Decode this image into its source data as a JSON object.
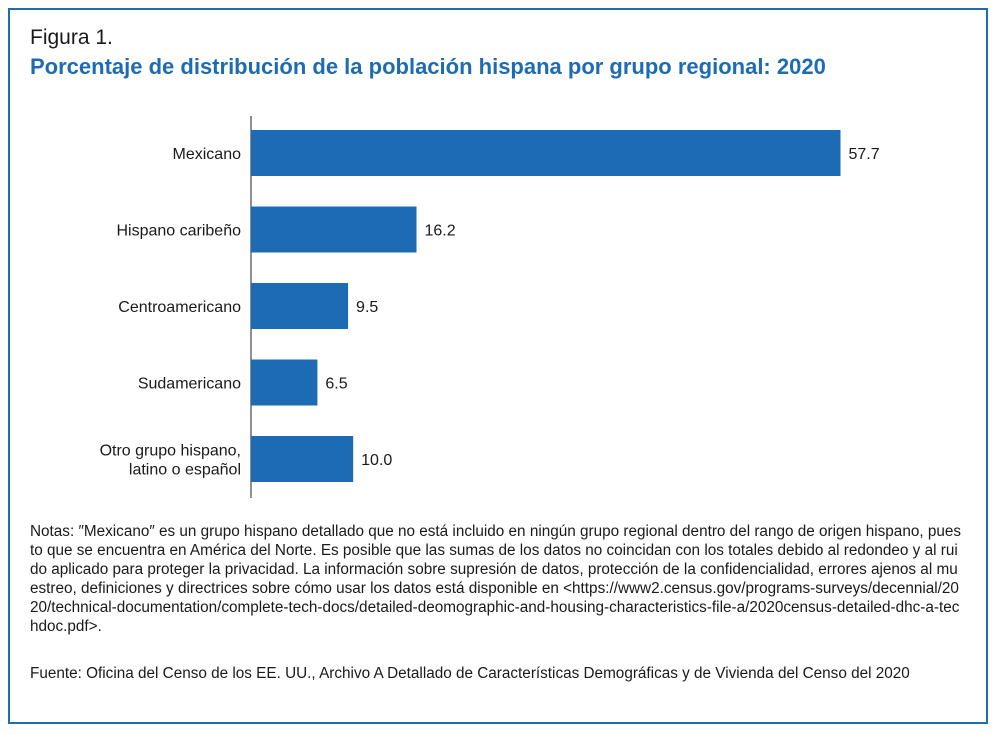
{
  "figure_label": "Figura 1.",
  "title": "Porcentaje de distribución de la población hispana por grupo regional: 2020",
  "chart_data": {
    "type": "bar",
    "orientation": "horizontal",
    "categories": [
      [
        "Mexicano"
      ],
      [
        "Hispano caribeño"
      ],
      [
        "Centroamericano"
      ],
      [
        "Sudamericano"
      ],
      [
        "Otro grupo hispano,",
        "latino o español"
      ]
    ],
    "values": [
      57.7,
      16.2,
      9.5,
      6.5,
      10.0
    ],
    "value_labels": [
      "57.7",
      "16.2",
      "9.5",
      "6.5",
      "10.0"
    ],
    "bar_color": "#1d6cb3",
    "xlim": [
      0,
      60
    ],
    "grid": false,
    "xlabel": "",
    "ylabel": ""
  },
  "notes": "Notas: ″Mexicano″ es un grupo hispano detallado que no está incluido en ningún grupo regional dentro del rango de origen hispano, puesto que se encuentra en América del Norte. Es posible que las sumas de los datos no coincidan con los totales debido al redondeo y al ruido aplicado para proteger la privacidad. La información sobre supresión de datos, protección de la confidencialidad, errores ajenos al muestreo, definiciones y directrices sobre cómo usar los datos está disponible en <https://www2.census.gov/programs-surveys/decennial/2020/technical-documentation/complete-tech-docs/detailed-deomographic-and-housing-characteristics-file-a/2020census-detailed-dhc-a-techdoc.pdf>.",
  "source": "Fuente: Oficina del Censo de los EE. UU., Archivo A Detallado de Características Demográficas y de Vivienda del Censo del 2020",
  "colors": {
    "frame": "#1e6fb0",
    "title": "#1d6cb3"
  }
}
